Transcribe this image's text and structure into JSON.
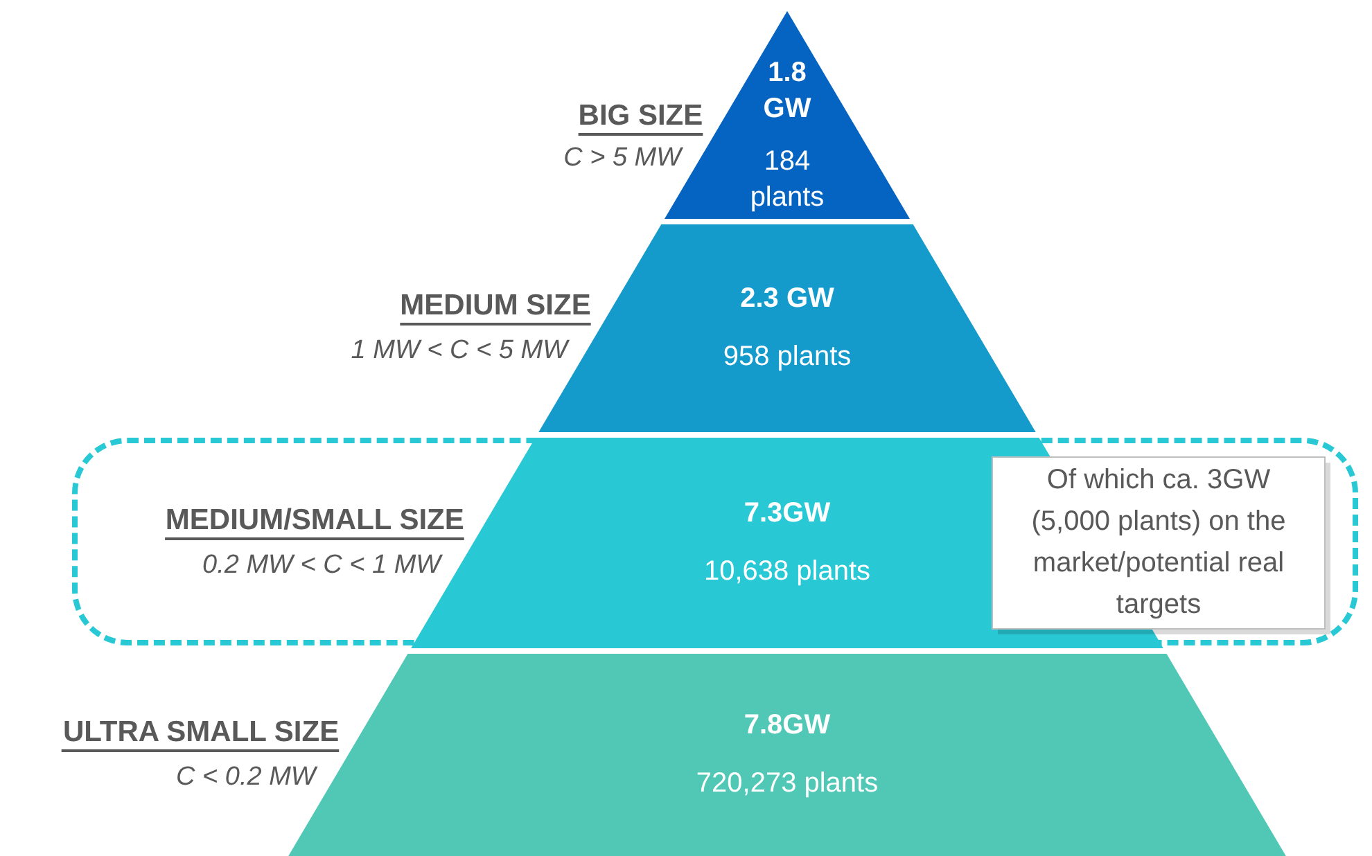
{
  "chart_data": {
    "type": "other",
    "categories": [
      "BIG SIZE",
      "MEDIUM SIZE",
      "MEDIUM/SMALL SIZE",
      "ULTRA SMALL SIZE"
    ],
    "series": [
      {
        "colors": [
          "#0563c1",
          "#149bcc",
          "#28c8d4",
          "#50c8b5"
        ],
        "values": [
          1.8,
          2.3,
          7.3,
          7.8
        ],
        "value_labels": [
          "1.8 GW",
          "2.3 GW",
          "7.3GW",
          "7.8GW"
        ]
      },
      {
        "values": [
          184,
          958,
          10638,
          720273
        ],
        "value_labels": [
          "184 plants",
          "958 plants",
          "10,638 plants",
          "720,273 plants"
        ]
      }
    ],
    "annotations": [
      {
        "text": "C > 5 MW",
        "x": "BIG SIZE"
      },
      {
        "text": "1 MW < C < 5 MW",
        "x": "MEDIUM SIZE"
      },
      {
        "text": "0.2 MW < C < 1 MW",
        "x": "MEDIUM/SMALL SIZE"
      },
      {
        "text": "C < 0.2 MW",
        "x": "ULTRA SMALL SIZE"
      },
      {
        "text": "Of which ca. 3GW (5,000 plants) on the market/potential real targets",
        "x": "MEDIUM/SMALL SIZE"
      }
    ]
  }
}
